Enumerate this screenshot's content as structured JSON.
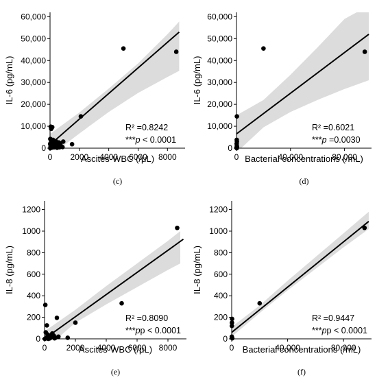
{
  "chart_data": [
    {
      "type": "scatter",
      "panel": "(c)",
      "xlabel": "Ascites-WBC (/μL)",
      "ylabel": "IL-6 (pg/mL)",
      "xlim": [
        0,
        9200
      ],
      "ylim": [
        0,
        62000
      ],
      "xticks": [
        0,
        2000,
        4000,
        6000,
        8000
      ],
      "xtick_labels": [
        "0",
        "2000",
        "4000",
        "6000",
        "8000"
      ],
      "yticks": [
        0,
        10000,
        20000,
        30000,
        40000,
        50000,
        60000
      ],
      "ytick_labels": [
        "0",
        "10,000",
        "20,000",
        "30,000",
        "40,000",
        "50,000",
        "60,000"
      ],
      "r2_label": "R² =0.8242",
      "p_stars": "***",
      "p_rest": " < 0.0001",
      "fit": {
        "x0": 0,
        "y0": 1600,
        "x1": 8800,
        "y1": 53000
      },
      "band": [
        [
          0,
          -3500,
          6500
        ],
        [
          2000,
          6700,
          16300
        ],
        [
          4000,
          16500,
          27200
        ],
        [
          6000,
          25200,
          38700
        ],
        [
          8000,
          32500,
          52000
        ],
        [
          8800,
          35300,
          57800
        ]
      ],
      "points": [
        [
          5000,
          45500
        ],
        [
          8600,
          44000
        ],
        [
          2100,
          14500
        ],
        [
          50,
          9800
        ],
        [
          100,
          9200
        ],
        [
          150,
          9600
        ],
        [
          80,
          8800
        ],
        [
          20,
          4200
        ],
        [
          60,
          3500
        ],
        [
          120,
          2800
        ],
        [
          200,
          3800
        ],
        [
          250,
          3000
        ],
        [
          300,
          2400
        ],
        [
          350,
          2000
        ],
        [
          400,
          3200
        ],
        [
          500,
          1800
        ],
        [
          600,
          2600
        ],
        [
          700,
          2200
        ],
        [
          900,
          3000
        ],
        [
          1500,
          1800
        ],
        [
          30,
          500
        ],
        [
          40,
          1200
        ],
        [
          90,
          700
        ],
        [
          150,
          300
        ],
        [
          180,
          1500
        ],
        [
          220,
          900
        ],
        [
          280,
          400
        ],
        [
          330,
          1100
        ],
        [
          420,
          600
        ],
        [
          480,
          200
        ],
        [
          550,
          800
        ],
        [
          650,
          400
        ],
        [
          750,
          1000
        ],
        [
          850,
          500
        ],
        [
          10,
          2000
        ],
        [
          20,
          0
        ],
        [
          260,
          1700
        ]
      ]
    },
    {
      "type": "scatter",
      "panel": "(d)",
      "xlabel": "Bacterial concentrations (/mL)",
      "ylabel": "IL-6 (pg/mL)",
      "xlim": [
        0,
        100000
      ],
      "ylim": [
        0,
        62000
      ],
      "xticks": [
        0,
        40000,
        80000
      ],
      "xtick_labels": [
        "0",
        "40,000",
        "80,000"
      ],
      "yticks": [
        0,
        10000,
        20000,
        30000,
        40000,
        50000,
        60000
      ],
      "ytick_labels": [
        "0",
        "10,000",
        "20,000",
        "30,000",
        "40,000",
        "50,000",
        "60,000"
      ],
      "r2_label": "R² =0.6021",
      "p_stars": "***",
      "p_rest": " =0.0030",
      "fit": {
        "x0": 0,
        "y0": 6500,
        "x1": 98000,
        "y1": 52000
      },
      "band": [
        [
          0,
          -2000,
          15000
        ],
        [
          20000,
          9500,
          22000
        ],
        [
          40000,
          16500,
          33500
        ],
        [
          60000,
          22000,
          46000
        ],
        [
          80000,
          27000,
          59000
        ],
        [
          98000,
          31000,
          65000
        ]
      ],
      "points": [
        [
          20000,
          45500
        ],
        [
          95000,
          44000
        ],
        [
          300,
          14500
        ],
        [
          200,
          3800
        ],
        [
          300,
          3000
        ],
        [
          150,
          2000
        ],
        [
          250,
          1000
        ],
        [
          100,
          300
        ],
        [
          400,
          500
        ],
        [
          200,
          0
        ]
      ]
    },
    {
      "type": "scatter",
      "panel": "(e)",
      "xlabel": "Ascites-WBC (/μL)",
      "ylabel": "IL-8 (pg/mL)",
      "xlim": [
        0,
        9200
      ],
      "ylim": [
        0,
        1280
      ],
      "xticks": [
        0,
        2000,
        4000,
        6000,
        8000
      ],
      "xtick_labels": [
        "0",
        "2000",
        "4000",
        "6000",
        "8000"
      ],
      "yticks": [
        0,
        200,
        400,
        600,
        800,
        1000,
        1200
      ],
      "ytick_labels": [
        "0",
        "200",
        "400",
        "600",
        "800",
        "1000",
        "1200"
      ],
      "r2_label": "R² =0.8090",
      "p_stars": "***",
      "p_rest": "p < 0.0001",
      "fit": {
        "x0": 0,
        "y0": 0,
        "x1": 9000,
        "y1": 925
      },
      "band": [
        [
          0,
          -100,
          70
        ],
        [
          2000,
          150,
          270
        ],
        [
          4000,
          320,
          490
        ],
        [
          6000,
          480,
          700
        ],
        [
          8000,
          640,
          910
        ],
        [
          8800,
          700,
          1000
        ]
      ],
      "points": [
        [
          8600,
          1030
        ],
        [
          5000,
          330
        ],
        [
          2000,
          150
        ],
        [
          800,
          195
        ],
        [
          50,
          315
        ],
        [
          150,
          125
        ],
        [
          200,
          40
        ],
        [
          300,
          30
        ],
        [
          400,
          20
        ],
        [
          500,
          50
        ],
        [
          600,
          30
        ],
        [
          700,
          10
        ],
        [
          900,
          20
        ],
        [
          1500,
          10
        ],
        [
          100,
          10
        ],
        [
          250,
          0
        ],
        [
          350,
          5
        ],
        [
          450,
          15
        ],
        [
          550,
          25
        ],
        [
          650,
          5
        ],
        [
          80,
          60
        ],
        [
          20,
          0
        ]
      ]
    },
    {
      "type": "scatter",
      "panel": "(f)",
      "xlabel": "Bacterial concentrations (/mL)",
      "ylabel": "IL-8 (pg/mL)",
      "xlim": [
        0,
        100000
      ],
      "ylim": [
        0,
        1280
      ],
      "xticks": [
        0,
        40000,
        80000
      ],
      "xtick_labels": [
        "0",
        "40,000",
        "80,000"
      ],
      "yticks": [
        0,
        200,
        400,
        600,
        800,
        1000,
        1200
      ],
      "ytick_labels": [
        "0",
        "200",
        "400",
        "600",
        "800",
        "1000",
        "1200"
      ],
      "r2_label": "R² =0.9447",
      "p_stars": "***",
      "p_rest": "p < 0.0001",
      "fit": {
        "x0": 0,
        "y0": 60,
        "x1": 98000,
        "y1": 1090
      },
      "band": [
        [
          0,
          20,
          110
        ],
        [
          20000,
          240,
          310
        ],
        [
          40000,
          450,
          540
        ],
        [
          60000,
          650,
          760
        ],
        [
          80000,
          850,
          980
        ],
        [
          98000,
          1020,
          1180
        ]
      ],
      "points": [
        [
          95000,
          1030
        ],
        [
          20000,
          330
        ],
        [
          300,
          185
        ],
        [
          200,
          150
        ],
        [
          150,
          120
        ],
        [
          100,
          20
        ],
        [
          250,
          10
        ],
        [
          400,
          5
        ]
      ]
    }
  ]
}
